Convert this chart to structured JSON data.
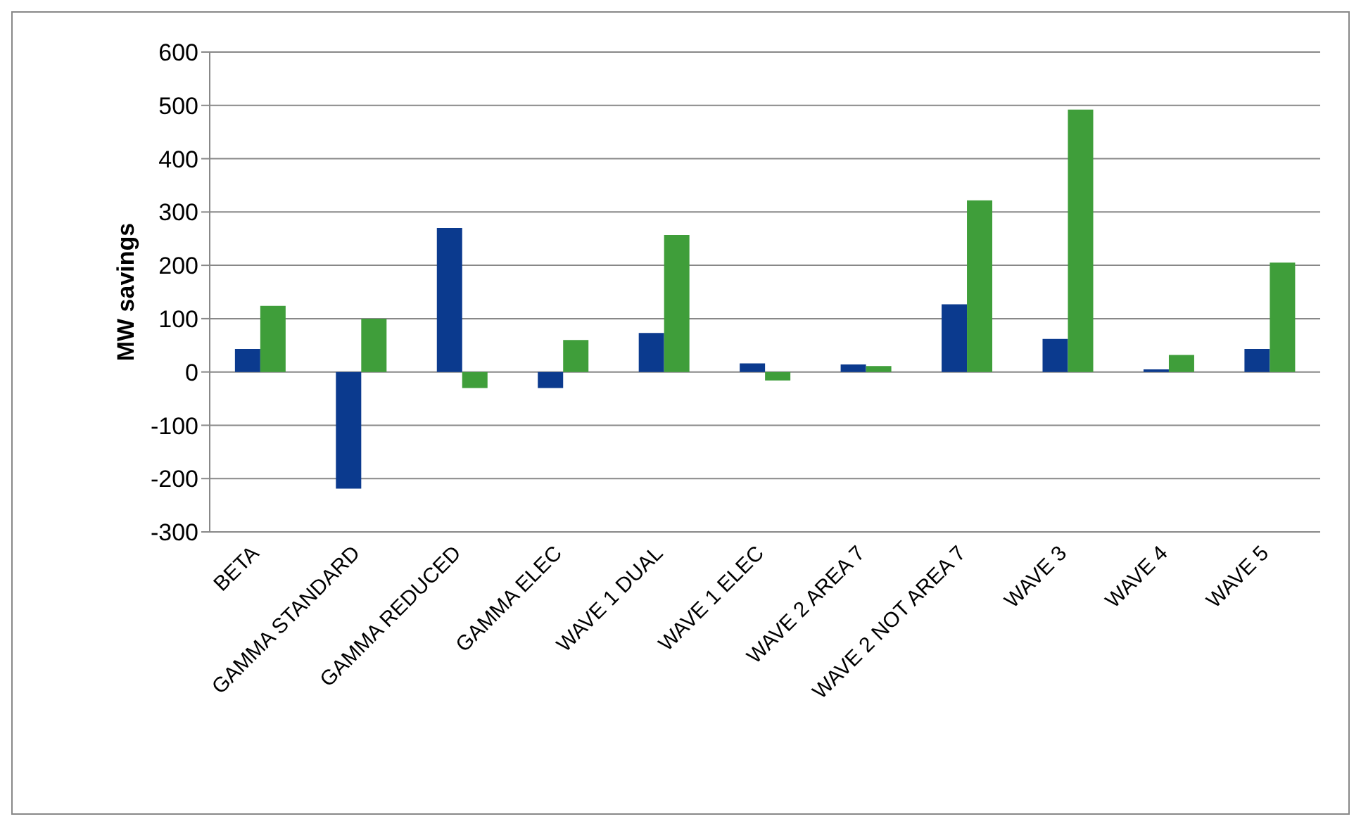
{
  "chart_data": {
    "type": "bar",
    "ylabel": "MW savings",
    "categories": [
      "BETA",
      "GAMMA STANDARD",
      "GAMMA REDUCED",
      "GAMMA ELEC",
      "WAVE 1 DUAL",
      "WAVE 1 ELEC",
      "WAVE 2 AREA 7",
      "WAVE 2 NOT AREA 7",
      "WAVE 3",
      "WAVE 4",
      "WAVE 5"
    ],
    "series": [
      {
        "color": "#0b3a8e",
        "values": [
          43,
          -219,
          270,
          -30,
          73,
          16,
          14,
          127,
          62,
          5,
          43
        ]
      },
      {
        "color": "#3f9e3a",
        "values": [
          124,
          100,
          -30,
          60,
          257,
          -16,
          11,
          322,
          492,
          32,
          205
        ]
      }
    ],
    "ylim": [
      -300,
      600
    ],
    "yticks": [
      -300,
      -200,
      -100,
      0,
      100,
      200,
      300,
      400,
      500,
      600
    ],
    "grid": "y"
  }
}
